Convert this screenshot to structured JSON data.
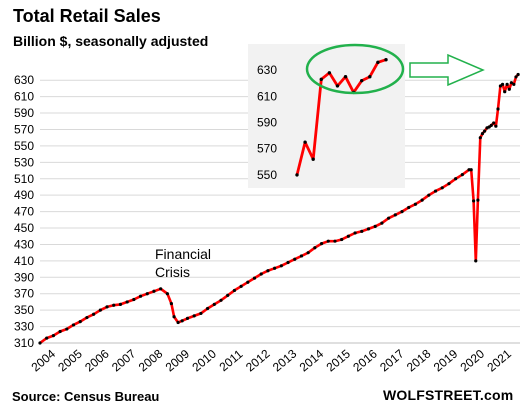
{
  "chart_data": {
    "type": "line",
    "title": "Total Retail Sales",
    "subtitle": "Billion $, seasonally adjusted",
    "source": "Source: Census Bureau",
    "brand": "WOLFSTREET.com",
    "annotation": [
      "Financial",
      "Crisis"
    ],
    "xlim": [
      2004,
      2021.9
    ],
    "ylim": [
      310,
      640
    ],
    "y_ticks": [
      310,
      330,
      350,
      370,
      390,
      410,
      430,
      450,
      470,
      490,
      510,
      530,
      550,
      570,
      590,
      610,
      630
    ],
    "x_ticks": [
      "2004",
      "2005",
      "2006",
      "2007",
      "2008",
      "2009",
      "2010",
      "2011",
      "2012",
      "2013",
      "2014",
      "2015",
      "2016",
      "2017",
      "2018",
      "2019",
      "2020",
      "2021"
    ],
    "grid": true,
    "series_color": "#ff0000",
    "marker_color": "#000000",
    "series": [
      {
        "values": [
          [
            2004.0,
            310
          ],
          [
            2004.25,
            316
          ],
          [
            2004.5,
            319
          ],
          [
            2004.75,
            324
          ],
          [
            2005.0,
            327
          ],
          [
            2005.25,
            332
          ],
          [
            2005.5,
            336
          ],
          [
            2005.75,
            341
          ],
          [
            2006.0,
            345
          ],
          [
            2006.25,
            350
          ],
          [
            2006.5,
            354
          ],
          [
            2006.75,
            356
          ],
          [
            2007.0,
            357
          ],
          [
            2007.25,
            360
          ],
          [
            2007.5,
            363
          ],
          [
            2007.75,
            367
          ],
          [
            2008.0,
            370
          ],
          [
            2008.25,
            373
          ],
          [
            2008.5,
            376
          ],
          [
            2008.75,
            370
          ],
          [
            2008.9,
            358
          ],
          [
            2009.0,
            342
          ],
          [
            2009.15,
            335
          ],
          [
            2009.3,
            337
          ],
          [
            2009.5,
            340
          ],
          [
            2009.75,
            343
          ],
          [
            2010.0,
            346
          ],
          [
            2010.25,
            352
          ],
          [
            2010.5,
            357
          ],
          [
            2010.75,
            362
          ],
          [
            2011.0,
            368
          ],
          [
            2011.25,
            374
          ],
          [
            2011.5,
            379
          ],
          [
            2011.75,
            384
          ],
          [
            2012.0,
            389
          ],
          [
            2012.25,
            394
          ],
          [
            2012.5,
            398
          ],
          [
            2012.75,
            401
          ],
          [
            2013.0,
            404
          ],
          [
            2013.25,
            408
          ],
          [
            2013.5,
            412
          ],
          [
            2013.75,
            416
          ],
          [
            2014.0,
            420
          ],
          [
            2014.25,
            426
          ],
          [
            2014.5,
            431
          ],
          [
            2014.75,
            434
          ],
          [
            2015.0,
            434
          ],
          [
            2015.25,
            436
          ],
          [
            2015.5,
            440
          ],
          [
            2015.75,
            444
          ],
          [
            2016.0,
            446
          ],
          [
            2016.25,
            449
          ],
          [
            2016.5,
            452
          ],
          [
            2016.75,
            456
          ],
          [
            2017.0,
            462
          ],
          [
            2017.25,
            466
          ],
          [
            2017.5,
            470
          ],
          [
            2017.75,
            475
          ],
          [
            2018.0,
            479
          ],
          [
            2018.25,
            484
          ],
          [
            2018.5,
            490
          ],
          [
            2018.75,
            495
          ],
          [
            2019.0,
            499
          ],
          [
            2019.25,
            504
          ],
          [
            2019.5,
            510
          ],
          [
            2019.75,
            515
          ],
          [
            2020.0,
            521
          ],
          [
            2020.08,
            521
          ],
          [
            2020.17,
            483
          ],
          [
            2020.25,
            410
          ],
          [
            2020.33,
            484
          ],
          [
            2020.42,
            560
          ],
          [
            2020.5,
            565
          ],
          [
            2020.58,
            568
          ],
          [
            2020.67,
            572
          ],
          [
            2020.75,
            573
          ],
          [
            2020.83,
            575
          ],
          [
            2020.92,
            578
          ],
          [
            2021.0,
            574
          ],
          [
            2021.08,
            595
          ],
          [
            2021.17,
            623
          ],
          [
            2021.25,
            625
          ],
          [
            2021.33,
            616
          ],
          [
            2021.42,
            625
          ],
          [
            2021.5,
            619
          ],
          [
            2021.58,
            627
          ],
          [
            2021.67,
            625
          ],
          [
            2021.75,
            634
          ],
          [
            2021.83,
            637
          ]
        ]
      }
    ],
    "inset": {
      "y_ticks": [
        550,
        570,
        590,
        610,
        630
      ],
      "ylim": [
        540,
        650
      ],
      "values": [
        550,
        575,
        562,
        623,
        628,
        618,
        625,
        613,
        622,
        625,
        636,
        638
      ]
    }
  }
}
